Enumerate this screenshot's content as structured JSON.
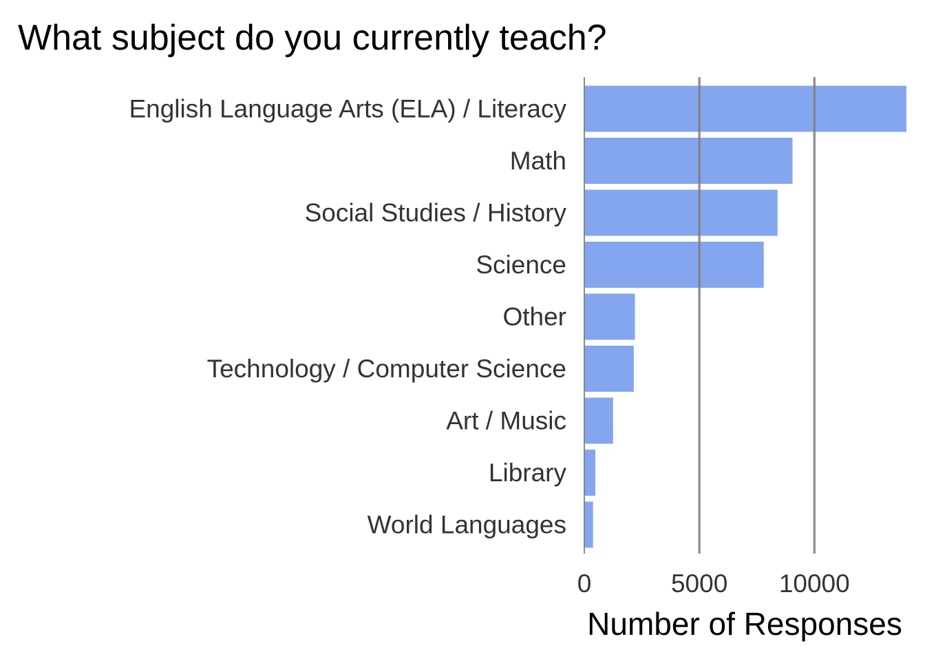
{
  "chart_data": {
    "type": "bar",
    "orientation": "horizontal",
    "title": "What subject do you currently teach?",
    "xlabel": "Number of Responses",
    "ylabel": "",
    "categories": [
      "English Language Arts (ELA) / Literacy",
      "Math",
      "Social Studies / History",
      "Science",
      "Other",
      "Technology / Computer Science",
      "Art / Music",
      "Library",
      "World Languages"
    ],
    "values": [
      14000,
      9050,
      8400,
      7800,
      2200,
      2150,
      1250,
      480,
      380
    ],
    "xlim": [
      0,
      14000
    ],
    "x_ticks": [
      0,
      5000,
      10000
    ],
    "x_tick_labels": [
      "0",
      "5000",
      "10000"
    ],
    "grid": "vertical major lines",
    "bar_color": "#6f96eb",
    "gridline_color": "#7f7f7f"
  }
}
